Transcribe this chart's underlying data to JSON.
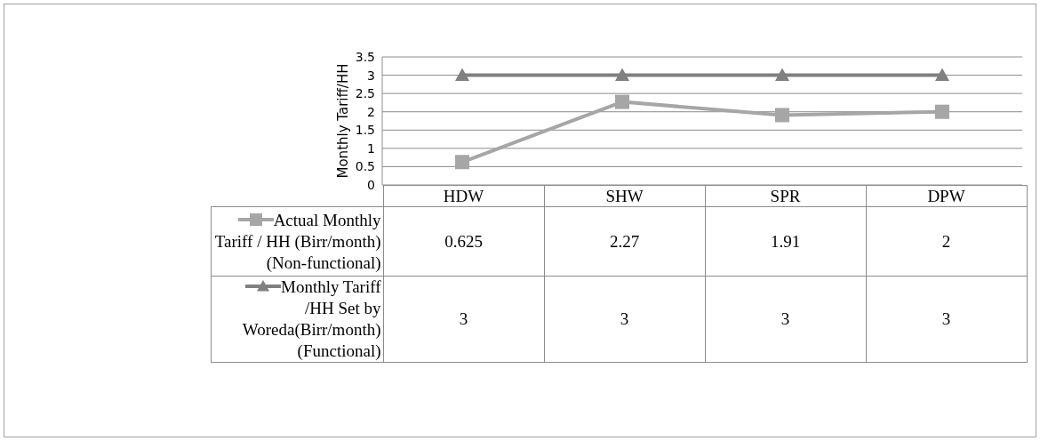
{
  "chart_data": {
    "type": "line",
    "ylabel": "Monthly Tariff/HH",
    "categories": [
      "HDW",
      "SHW",
      "SPR",
      "DPW"
    ],
    "series": [
      {
        "name": "Actual Monthly Tariff / HH (Birr/month)(Non-functional)",
        "color": "#a6a6a6",
        "marker": "square",
        "values": [
          0.625,
          2.27,
          1.91,
          2
        ]
      },
      {
        "name": "Monthly Tariff /HH Set by Woreda(Birr/month)(Functional)",
        "color": "#808080",
        "marker": "triangle",
        "values": [
          3,
          3,
          3,
          3
        ]
      }
    ],
    "ylim": [
      0,
      3.5
    ],
    "yticks": [
      0,
      0.5,
      1,
      1.5,
      2,
      2.5,
      3,
      3.5
    ],
    "grid": "y",
    "legend": "bottom left",
    "data_labels": true
  }
}
